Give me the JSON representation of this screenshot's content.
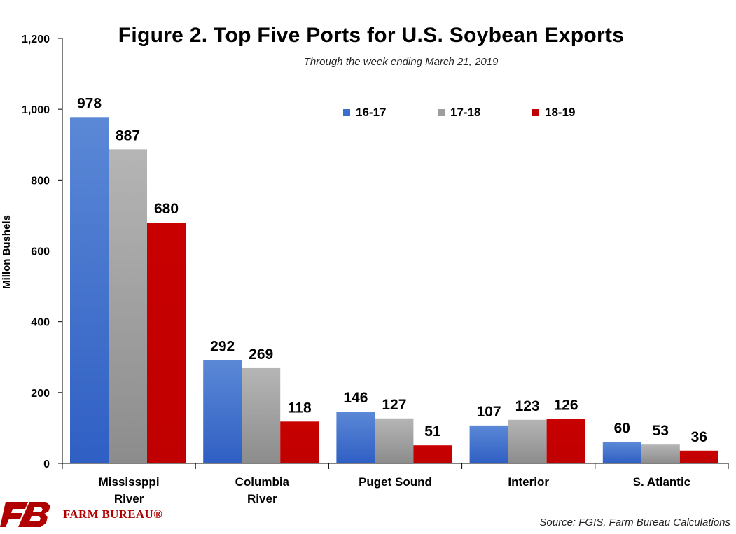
{
  "logo": {
    "text": "FARM BUREAU®",
    "icon": "fb-logo-icon"
  },
  "source": "Source: FGIS, Farm Bureau Calculations",
  "colors": {
    "16-17": "#3a6fd0",
    "17-18": "#9e9e9e",
    "18-19": "#c00000"
  },
  "chart_data": {
    "type": "bar",
    "title": "Figure 2. Top Five Ports for U.S. Soybean Exports",
    "subtitle": "Through the week ending March 21, 2019",
    "xlabel": "",
    "ylabel": "Millon Bushels",
    "ylim": [
      0,
      1200
    ],
    "yticks": [
      "0",
      "200",
      "400",
      "600",
      "800",
      "1,000",
      "1,200"
    ],
    "ytick_values": [
      0,
      200,
      400,
      600,
      800,
      1000,
      1200
    ],
    "categories": [
      [
        "Mississppi",
        "River"
      ],
      [
        "Columbia",
        "River"
      ],
      [
        "Puget Sound"
      ],
      [
        "Interior"
      ],
      [
        "S. Atlantic"
      ]
    ],
    "series": [
      {
        "name": "16-17",
        "values": [
          978,
          292,
          146,
          107,
          60
        ]
      },
      {
        "name": "17-18",
        "values": [
          887,
          269,
          127,
          123,
          53
        ]
      },
      {
        "name": "18-19",
        "values": [
          680,
          118,
          51,
          126,
          36
        ]
      }
    ],
    "legend_position": "top-right",
    "grid": false
  }
}
